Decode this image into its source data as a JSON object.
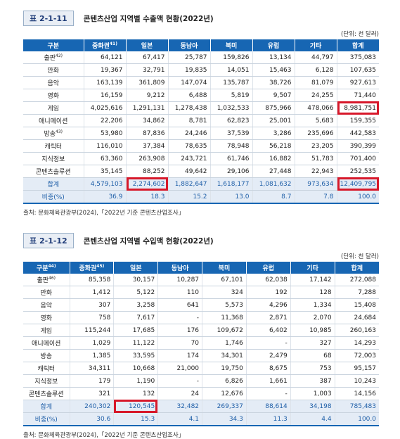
{
  "table1": {
    "tag": "표 2-1-11",
    "title": "콘텐츠산업 지역별 수출액 현황(2022년)",
    "unit": "(단위: 천 달러)",
    "headers": [
      "구분",
      "중화권",
      "일본",
      "동남아",
      "북미",
      "유럽",
      "기타",
      "합계"
    ],
    "header_note": "41)",
    "rows": [
      {
        "label": "출판",
        "note": "42)",
        "values": [
          "64,121",
          "67,417",
          "25,787",
          "159,826",
          "13,134",
          "44,797",
          "375,083"
        ]
      },
      {
        "label": "만화",
        "note": "",
        "values": [
          "19,367",
          "32,791",
          "19,835",
          "14,051",
          "15,463",
          "6,128",
          "107,635"
        ]
      },
      {
        "label": "음악",
        "note": "",
        "values": [
          "163,139",
          "361,809",
          "147,074",
          "135,787",
          "38,726",
          "81,079",
          "927,613"
        ]
      },
      {
        "label": "영화",
        "note": "",
        "values": [
          "16,159",
          "9,212",
          "6,488",
          "5,819",
          "9,507",
          "24,255",
          "71,440"
        ]
      },
      {
        "label": "게임",
        "note": "",
        "values": [
          "4,025,616",
          "1,291,131",
          "1,278,438",
          "1,032,533",
          "875,966",
          "478,066",
          "8,981,751"
        ]
      },
      {
        "label": "애니메이션",
        "note": "",
        "values": [
          "22,206",
          "34,862",
          "8,781",
          "62,823",
          "25,001",
          "5,683",
          "159,355"
        ]
      },
      {
        "label": "방송",
        "note": "43)",
        "values": [
          "53,980",
          "87,836",
          "24,246",
          "37,539",
          "3,286",
          "235,696",
          "442,583"
        ]
      },
      {
        "label": "캐릭터",
        "note": "",
        "values": [
          "116,010",
          "37,384",
          "78,635",
          "78,948",
          "56,218",
          "23,205",
          "390,399"
        ]
      },
      {
        "label": "지식정보",
        "note": "",
        "values": [
          "63,360",
          "263,908",
          "243,721",
          "61,746",
          "16,882",
          "51,783",
          "701,400"
        ]
      },
      {
        "label": "콘텐츠솔루션",
        "note": "",
        "values": [
          "35,145",
          "88,252",
          "49,642",
          "29,106",
          "27,448",
          "22,943",
          "252,535"
        ]
      }
    ],
    "total": {
      "label": "합계",
      "values": [
        "4,579,103",
        "2,274,602",
        "1,882,647",
        "1,618,177",
        "1,081,632",
        "973,634",
        "12,409,795"
      ]
    },
    "share": {
      "label": "비중(%)",
      "values": [
        "36.9",
        "18.3",
        "15.2",
        "13.0",
        "8.7",
        "7.8",
        "100.0"
      ]
    },
    "source": "출처: 문화체육관광부(2024),「2022년 기준 콘텐츠산업조사」"
  },
  "table2": {
    "tag": "표 2-1-12",
    "title": "콘텐츠산업 지역별 수입액 현황(2022년)",
    "unit": "(단위: 천 달러)",
    "headers": [
      "구분",
      "중화권",
      "일본",
      "동남아",
      "북미",
      "유럽",
      "기타",
      "합계"
    ],
    "header_note": "44)",
    "header_note2": "45)",
    "rows": [
      {
        "label": "출판",
        "note": "46)",
        "values": [
          "85,358",
          "30,157",
          "10,287",
          "67,101",
          "62,038",
          "17,142",
          "272,088"
        ]
      },
      {
        "label": "만화",
        "note": "",
        "values": [
          "1,412",
          "5,122",
          "110",
          "324",
          "192",
          "128",
          "7,288"
        ]
      },
      {
        "label": "음악",
        "note": "",
        "values": [
          "307",
          "3,258",
          "641",
          "5,573",
          "4,296",
          "1,334",
          "15,408"
        ]
      },
      {
        "label": "영화",
        "note": "",
        "values": [
          "758",
          "7,617",
          "-",
          "11,368",
          "2,871",
          "2,070",
          "24,684"
        ]
      },
      {
        "label": "게임",
        "note": "",
        "values": [
          "115,244",
          "17,685",
          "176",
          "109,672",
          "6,402",
          "10,985",
          "260,163"
        ]
      },
      {
        "label": "애니메이션",
        "note": "",
        "values": [
          "1,029",
          "11,122",
          "70",
          "1,746",
          "-",
          "327",
          "14,293"
        ]
      },
      {
        "label": "방송",
        "note": "",
        "values": [
          "1,385",
          "33,595",
          "174",
          "34,301",
          "2,479",
          "68",
          "72,003"
        ]
      },
      {
        "label": "캐릭터",
        "note": "",
        "values": [
          "34,311",
          "10,668",
          "21,000",
          "19,750",
          "8,675",
          "753",
          "95,157"
        ]
      },
      {
        "label": "지식정보",
        "note": "",
        "values": [
          "179",
          "1,190",
          "-",
          "6,826",
          "1,661",
          "387",
          "10,243"
        ]
      },
      {
        "label": "콘텐츠솔루션",
        "note": "",
        "values": [
          "321",
          "132",
          "24",
          "12,676",
          "-",
          "1,003",
          "14,156"
        ]
      }
    ],
    "total": {
      "label": "합계",
      "values": [
        "240,302",
        "120,545",
        "32,482",
        "269,337",
        "88,614",
        "34,198",
        "785,483"
      ]
    },
    "share": {
      "label": "비중(%)",
      "values": [
        "30.6",
        "15.3",
        "4.1",
        "34.3",
        "11.3",
        "4.4",
        "100.0"
      ]
    },
    "source": "출처: 문화체육관광부(2024),「2022년 기준 콘텐츠산업조사」"
  },
  "colors": {
    "header_blue": "#1766b3",
    "highlight_red": "#d7182a",
    "total_bg": "#e4ecf6"
  }
}
